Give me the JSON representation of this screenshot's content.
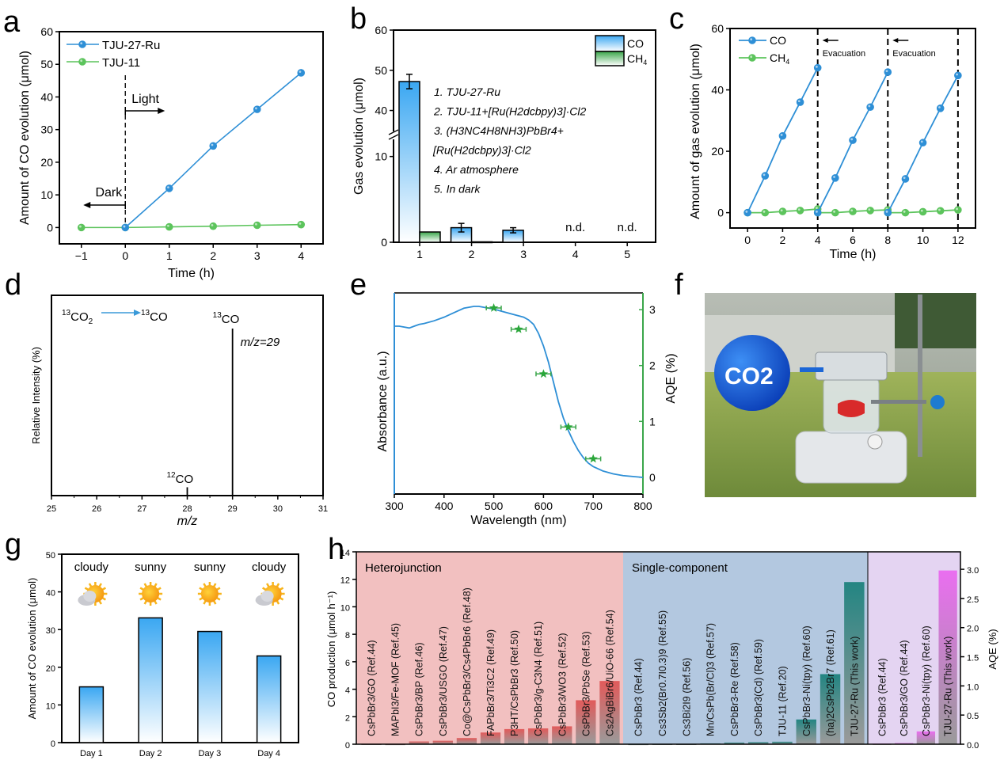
{
  "panel_labels": [
    "a",
    "b",
    "c",
    "d",
    "e",
    "f",
    "g",
    "h"
  ],
  "chart_data": [
    {
      "id": "a",
      "type": "line",
      "title": "",
      "xlabel": "Time (h)",
      "ylabel": "Amount of CO evolution (μmol)",
      "xlim": [
        -1.5,
        4.5
      ],
      "ylim": [
        -5,
        60
      ],
      "xticks": [
        -1,
        0,
        1,
        2,
        3,
        4
      ],
      "yticks": [
        0,
        10,
        20,
        30,
        40,
        50,
        60
      ],
      "legend_position": "top-left",
      "series": [
        {
          "name": "TJU-27-Ru",
          "color": "#2e8fd6",
          "x": [
            0,
            1,
            2,
            3,
            4
          ],
          "y": [
            0,
            12.0,
            25.0,
            36.2,
            47.4
          ]
        },
        {
          "name": "TJU-11",
          "color": "#5cc45c",
          "x": [
            -1,
            0,
            1,
            2,
            3,
            4
          ],
          "y": [
            0,
            0,
            0.2,
            0.4,
            0.7,
            0.9
          ]
        }
      ],
      "annotations": [
        {
          "text": "Light",
          "arrow": "right",
          "at_x": 0
        },
        {
          "text": "Dark",
          "arrow": "left",
          "at_x": 0
        }
      ],
      "vline_x": 0
    },
    {
      "id": "b",
      "type": "bar",
      "title": "",
      "xlabel": "",
      "ylabel": "Gas evolution (μmol)",
      "categories": [
        "1",
        "2",
        "3",
        "4",
        "5"
      ],
      "ylim_lower": [
        0,
        12
      ],
      "ylim_upper": [
        34,
        60
      ],
      "yticks": [
        0,
        10,
        40,
        50,
        60
      ],
      "axis_break": true,
      "legend_position": "top-right",
      "series": [
        {
          "name": "CO",
          "color": "#4aa8ee",
          "values": [
            47.2,
            1.7,
            1.4,
            0,
            0
          ],
          "errors": [
            1.8,
            0.5,
            0.3,
            0,
            0
          ]
        },
        {
          "name": "CH4",
          "color": "#3aa64a",
          "values": [
            1.2,
            0.05,
            0,
            0,
            0
          ],
          "errors": [
            0,
            0,
            0,
            0,
            0
          ]
        }
      ],
      "bar_annotations": [
        "",
        "",
        "",
        "n.d.",
        "n.d."
      ],
      "conditions": [
        "1. TJU-27-Ru",
        "2. TJU-11+[Ru(H2dcbpy)3]·Cl2",
        "3. (H3NC4H8NH3)PbBr4+",
        "[Ru(H2dcbpy)3]·Cl2",
        "4. Ar atmosphere",
        "5. In dark"
      ]
    },
    {
      "id": "c",
      "type": "line",
      "title": "",
      "xlabel": "Time (h)",
      "ylabel": "Amount of gas evolution (μmol)",
      "xlim": [
        -1,
        13
      ],
      "ylim": [
        -5,
        60
      ],
      "xticks": [
        0,
        2,
        4,
        6,
        8,
        10,
        12
      ],
      "yticks": [
        0,
        20,
        40,
        60
      ],
      "legend_position": "top-left",
      "series": [
        {
          "name": "CO",
          "color": "#2e8fd6",
          "segments": [
            {
              "x": [
                0,
                1,
                2,
                3,
                4
              ],
              "y": [
                0,
                12.0,
                25.0,
                36.0,
                47.2
              ]
            },
            {
              "x": [
                4,
                5,
                6,
                7,
                8
              ],
              "y": [
                0,
                11.3,
                23.6,
                34.4,
                45.8
              ]
            },
            {
              "x": [
                8,
                9,
                10,
                11,
                12
              ],
              "y": [
                0,
                11.0,
                22.8,
                34.0,
                44.7
              ]
            }
          ]
        },
        {
          "name": "CH4",
          "color": "#5cc45c",
          "segments": [
            {
              "x": [
                0,
                1,
                2,
                3,
                4
              ],
              "y": [
                0,
                0,
                0.4,
                0.7,
                1.2
              ]
            },
            {
              "x": [
                4,
                5,
                6,
                7,
                8
              ],
              "y": [
                0,
                0,
                0.4,
                0.7,
                0.9
              ]
            },
            {
              "x": [
                8,
                9,
                10,
                11,
                12
              ],
              "y": [
                0,
                0,
                0.3,
                0.6,
                0.9
              ]
            }
          ]
        }
      ],
      "vlines_x": [
        4,
        8,
        12
      ],
      "annotations": [
        {
          "text": "Evacuation",
          "at_x": 4
        },
        {
          "text": "Evacuation",
          "at_x": 8
        }
      ]
    },
    {
      "id": "d",
      "type": "bar",
      "title": "",
      "xlabel": "m/z",
      "ylabel": "Relative Intensity (%)",
      "xlim": [
        25,
        31
      ],
      "xticks": [
        25,
        26,
        27,
        28,
        29,
        30,
        31
      ],
      "peaks": [
        {
          "x": 28,
          "relative_intensity": 0.05,
          "label": "12CO",
          "label_color": "#3a9ad9"
        },
        {
          "x": 29,
          "relative_intensity": 1.0,
          "label": "13CO",
          "label_color": "#d9535a"
        }
      ],
      "annotations": [
        {
          "text": "13CO2 → 13CO",
          "color": "#3a9ad9"
        },
        {
          "text": "m/z=29",
          "color": "#d9535a"
        }
      ]
    },
    {
      "id": "e",
      "type": "line",
      "title": "",
      "xlabel": "Wavelength (nm)",
      "ylabel_left": "Absorbance (a.u.)",
      "ylabel_right": "AQE (%)",
      "xlim": [
        300,
        800
      ],
      "xticks": [
        300,
        400,
        500,
        600,
        700,
        800
      ],
      "ylim_right": [
        -0.3,
        3.3
      ],
      "yticks_right": [
        0,
        1,
        2,
        3
      ],
      "left_color": "#2e8fd6",
      "right_color": "#3aa64a",
      "absorbance_curve": {
        "x": [
          300,
          310,
          320,
          330,
          340,
          350,
          360,
          380,
          400,
          420,
          440,
          460,
          470,
          480,
          500,
          520,
          540,
          560,
          570,
          580,
          590,
          600,
          610,
          620,
          630,
          640,
          650,
          660,
          670,
          680,
          690,
          700,
          720,
          740,
          760,
          780,
          800
        ],
        "y": [
          0.84,
          0.84,
          0.835,
          0.83,
          0.84,
          0.85,
          0.855,
          0.87,
          0.89,
          0.915,
          0.94,
          0.95,
          0.95,
          0.945,
          0.935,
          0.92,
          0.905,
          0.89,
          0.875,
          0.85,
          0.8,
          0.73,
          0.64,
          0.53,
          0.42,
          0.33,
          0.26,
          0.2,
          0.15,
          0.11,
          0.08,
          0.06,
          0.035,
          0.02,
          0.01,
          0.005,
          0.0
        ]
      },
      "aqe_points": {
        "x": [
          500,
          550,
          600,
          650,
          700
        ],
        "y": [
          3.03,
          2.65,
          1.85,
          0.9,
          0.33
        ],
        "xerr": [
          15,
          15,
          15,
          15,
          15
        ]
      }
    },
    {
      "id": "g",
      "type": "bar",
      "title": "",
      "xlabel": "",
      "ylabel": "Amount of CO evolution (μmol)",
      "categories": [
        "Day 1",
        "Day 2",
        "Day 3",
        "Day 4"
      ],
      "values": [
        14.8,
        33.1,
        29.5,
        23.0
      ],
      "weather": [
        "cloudy",
        "sunny",
        "sunny",
        "cloudy"
      ],
      "ylim": [
        0,
        50
      ],
      "yticks": [
        0,
        10,
        20,
        30,
        40,
        50
      ]
    },
    {
      "id": "h",
      "type": "bar",
      "title": "",
      "ylabel_left": "CO production (μmol h⁻¹)",
      "ylabel_right": "AQE (%)",
      "ylim_left": [
        0,
        14
      ],
      "yticks_left": [
        0,
        2,
        4,
        6,
        8,
        10,
        12,
        14
      ],
      "ylim_right": [
        0,
        3.3
      ],
      "yticks_right": [
        "0.0",
        "0.5",
        "1.0",
        "1.5",
        "2.0",
        "2.5",
        "3.0"
      ],
      "groups": [
        {
          "name": "Heterojunction",
          "bg": "#f2c0c0",
          "bar_color": "#e06060",
          "axis": "left",
          "categories": [
            "CsPbBr3/GO (Ref.44)",
            "MAPbI3/Fe-MOF (Ref.45)",
            "CsPbBr3/BP (Ref.46)",
            "CsPbBr3/USGO (Ref.47)",
            "Co@CsPbBr3/Cs4PbBr6 (Ref.48)",
            "FAPbBr3/Ti3C2 (Ref.49)",
            "P3HT/CsPbBr3 (Ref.50)",
            "CsPbBr3/g-C3N4 (Ref.51)",
            "CsPbBr3/WO3 (Ref.52)",
            "CsPbBr3/PbSe (Ref.53)",
            "Cs2AgBiBr6/UiO-66 (Ref.54)"
          ],
          "values": [
            0.03,
            0.02,
            0.2,
            0.25,
            0.45,
            0.85,
            1.1,
            1.15,
            1.3,
            3.2,
            4.6
          ]
        },
        {
          "name": "Single-component",
          "bg": "#b3c8e0",
          "bar_color": "#2a8a88",
          "axis": "left",
          "categories": [
            "CsPbBr3 (Ref.44)",
            "Cs3Sb2(Br0.7I0.3)9 (Ref.55)",
            "Cs3Bi2I9 (Ref.56)",
            "Mn/CsPb(Br/Cl)3 (Ref.57)",
            "CsPbBr3-Re (Ref.58)",
            "CsPbBr3(Cd) (Ref.59)",
            "TJU-11 (Ref.20)",
            "CsPbBr3-Ni(tpy) (Ref.60)",
            "(ha)2CsPb2Br7 (Ref.61)",
            "TJU-27-Ru (This work)"
          ],
          "values": [
            0.02,
            0.03,
            0.03,
            0.06,
            0.12,
            0.15,
            0.18,
            1.8,
            5.1,
            11.8
          ],
          "highlight_index": 9
        },
        {
          "name": "",
          "bg": "#e4d4f2",
          "bar_color": "#e070e8",
          "axis": "right",
          "categories": [
            "CsPbBr3 (Ref.44)",
            "CsPbBr3/GO (Ref.44)",
            "CsPbBr3-Ni(tpy) (Ref.60)",
            "TJU-27-Ru (This work)"
          ],
          "values": [
            0.01,
            0.02,
            0.22,
            2.98
          ],
          "highlight_index": 3
        }
      ],
      "highlight_color": "#e02020"
    }
  ],
  "photo_f": {
    "balloon_text": "CO2",
    "description": "Outdoor photo: reactor on magnetic stirrer on grass, CO2 balloon attached"
  }
}
